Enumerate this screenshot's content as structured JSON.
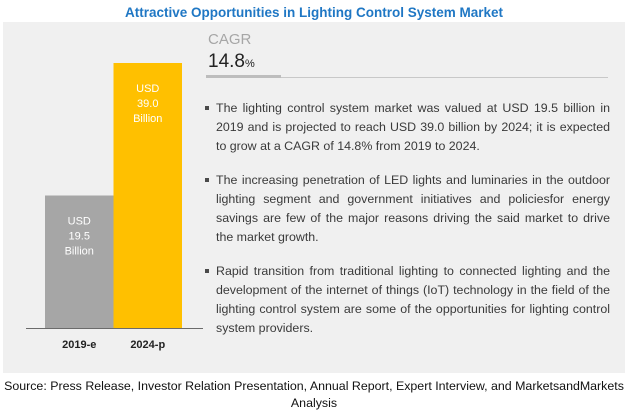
{
  "title": "Attractive Opportunities in Lighting Control System Market",
  "cagr": {
    "label": "CAGR",
    "value": "14.8",
    "unit": "%"
  },
  "chart_data": {
    "type": "bar",
    "title": "Attractive Opportunities in Lighting Control System Market",
    "categories": [
      "2019-e",
      "2024-p"
    ],
    "values": [
      19.5,
      39.0
    ],
    "unit": "USD Billion",
    "data_labels": [
      [
        "USD",
        "19.5",
        "Billion"
      ],
      [
        "USD",
        "39.0",
        "Billion"
      ]
    ],
    "colors": [
      "#a6a6a6",
      "#ffc000"
    ],
    "xlabel": "",
    "ylabel": "",
    "ylim": [
      0,
      39.0
    ],
    "grid": false
  },
  "bullets": [
    "The lighting control system market was valued at USD 19.5 billion in 2019 and is projected to reach USD 39.0 billion by 2024; it is expected to grow at a CAGR of 14.8% from 2019 to 2024.",
    "The increasing penetration of LED lights and luminaries in the outdoor lighting segment and government initiatives and policiesfor energy savings are few of the major reasons driving the said market to drive the market growth.",
    "Rapid transition from traditional lighting to connected lighting and the development of the internet of things (IoT) technology in the field of the lighting control system are some of the opportunities for lighting control system providers."
  ],
  "source": "Source: Press Release, Investor Relation Presentation, Annual Report, Expert Interview, and MarketsandMarkets Analysis"
}
